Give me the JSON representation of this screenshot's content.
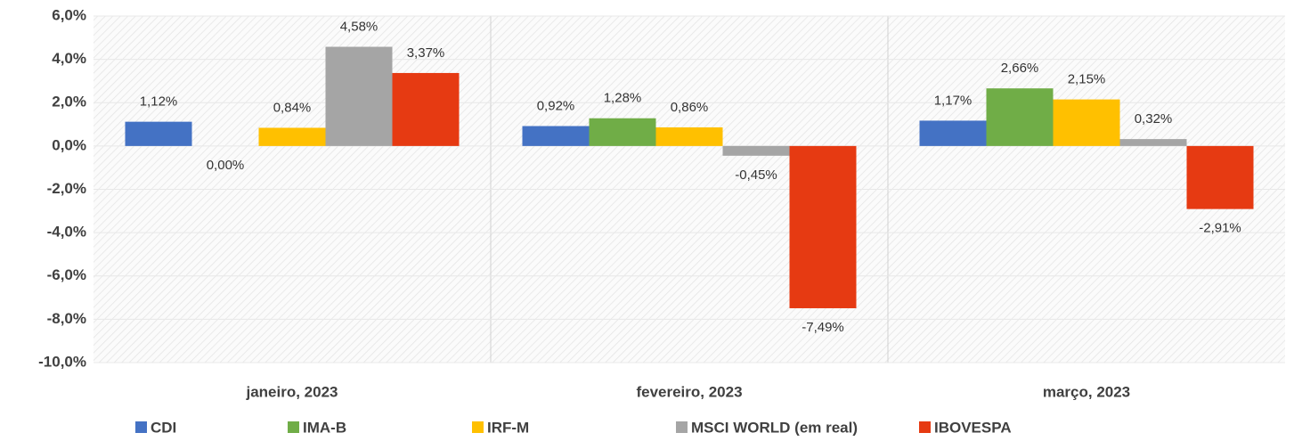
{
  "chart_data": {
    "type": "bar",
    "categories": [
      "janeiro, 2023",
      "fevereiro, 2023",
      "março, 2023"
    ],
    "series": [
      {
        "name": "CDI",
        "color": "#4472c4",
        "values": [
          1.12,
          0.92,
          1.17
        ],
        "value_labels": [
          "1,12%",
          "0,92%",
          "1,17%"
        ]
      },
      {
        "name": "IMA-B",
        "color": "#70ad47",
        "values": [
          0.0,
          1.28,
          2.66
        ],
        "value_labels": [
          "0,00%",
          "1,28%",
          "2,66%"
        ]
      },
      {
        "name": "IRF-M",
        "color": "#ffc000",
        "values": [
          0.84,
          0.86,
          2.15
        ],
        "value_labels": [
          "0,84%",
          "0,86%",
          "2,15%"
        ]
      },
      {
        "name": "MSCI WORLD (em real)",
        "color": "#a5a5a5",
        "values": [
          4.58,
          -0.45,
          0.32
        ],
        "value_labels": [
          "4,58%",
          "-0,45%",
          "0,32%"
        ]
      },
      {
        "name": "IBOVESPA",
        "color": "#e63a12",
        "values": [
          3.37,
          -7.49,
          -2.91
        ],
        "value_labels": [
          "3,37%",
          "-7,49%",
          "-2,91%"
        ]
      }
    ],
    "ylim": [
      -10,
      6
    ],
    "yticks": [
      {
        "value": -10,
        "label": "-10,0%"
      },
      {
        "value": -8,
        "label": "-8,0%"
      },
      {
        "value": -6,
        "label": "-6,0%"
      },
      {
        "value": -4,
        "label": "-4,0%"
      },
      {
        "value": -2,
        "label": "-2,0%"
      },
      {
        "value": 0,
        "label": "0,0%"
      },
      {
        "value": 2,
        "label": "2,0%"
      },
      {
        "value": 4,
        "label": "4,0%"
      },
      {
        "value": 6,
        "label": "6,0%"
      }
    ],
    "grid": true,
    "legend": "bottom"
  }
}
